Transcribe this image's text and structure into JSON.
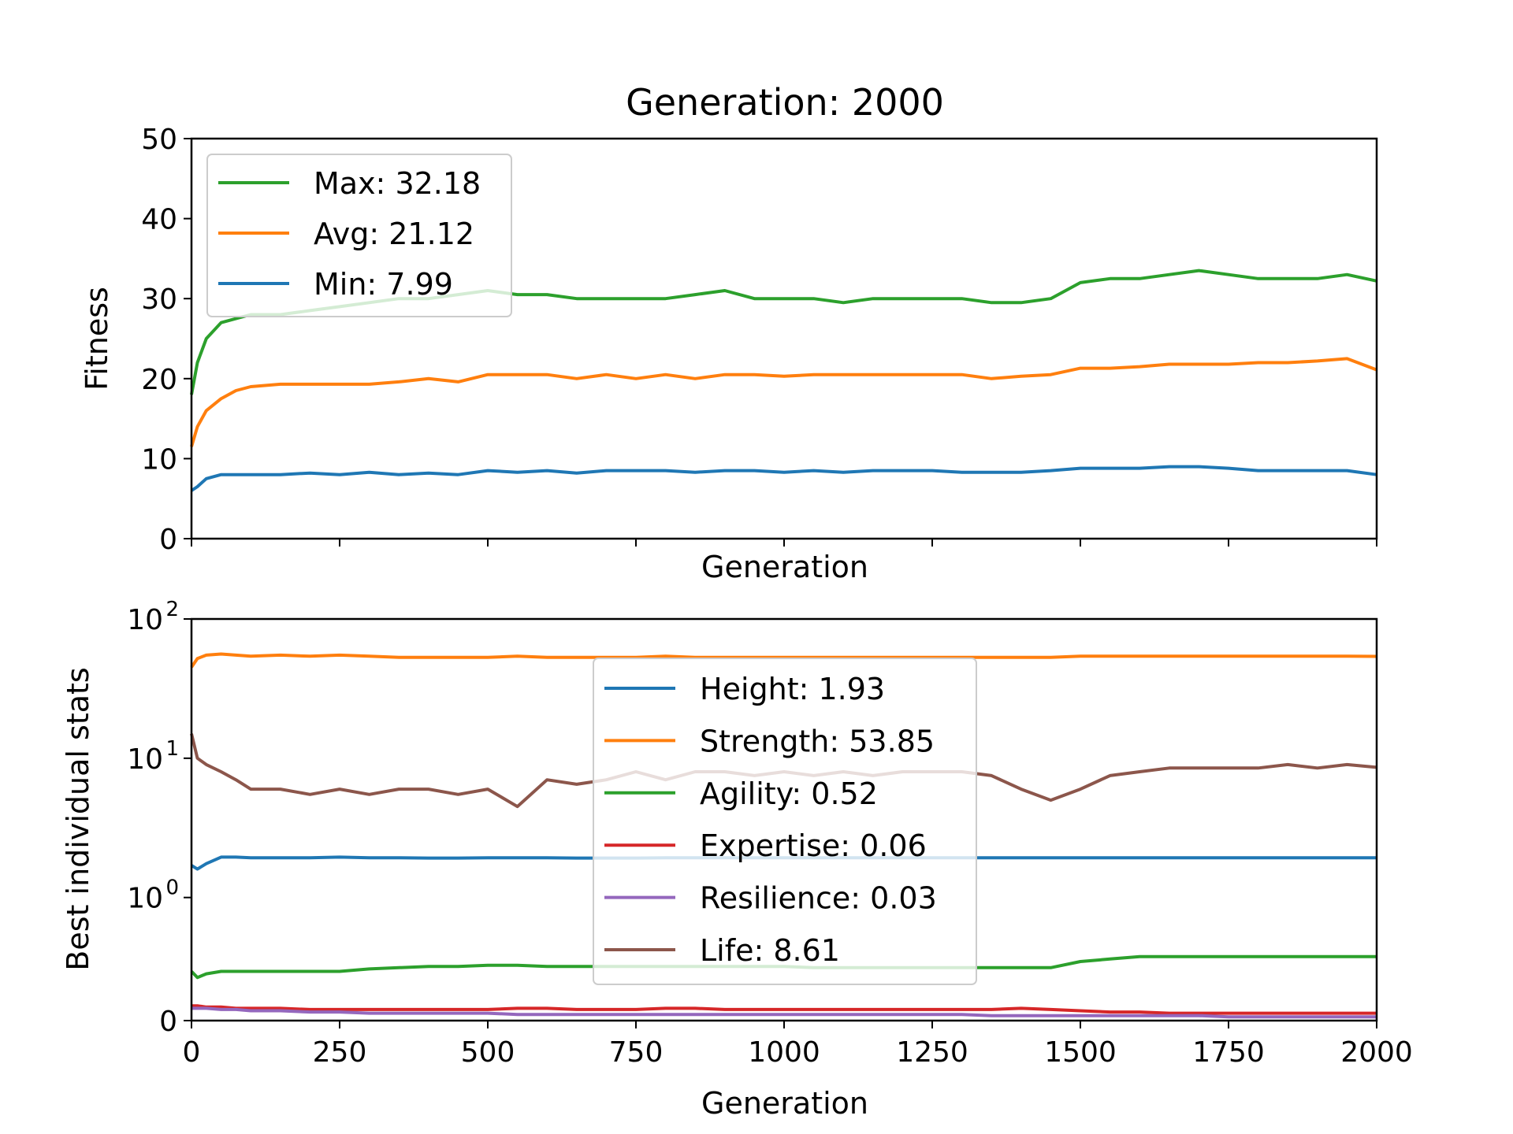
{
  "chart_data": [
    {
      "type": "line",
      "title": "Generation: 2000",
      "xlabel": "Generation",
      "ylabel": "Fitness",
      "xlim": [
        0,
        2000
      ],
      "ylim": [
        0,
        50
      ],
      "yscale": "linear",
      "grid": false,
      "legend_position": "top-left",
      "x_ticks": [
        0,
        250,
        500,
        750,
        1000,
        1250,
        1500,
        1750,
        2000
      ],
      "x_tick_labels_shown": false,
      "y_ticks": [
        "0",
        "10",
        "20",
        "30",
        "40",
        "50"
      ],
      "x": [
        0,
        10,
        25,
        50,
        75,
        100,
        150,
        200,
        250,
        300,
        350,
        400,
        450,
        500,
        550,
        600,
        650,
        700,
        750,
        800,
        850,
        900,
        950,
        1000,
        1050,
        1100,
        1150,
        1200,
        1250,
        1300,
        1350,
        1400,
        1450,
        1500,
        1550,
        1600,
        1650,
        1700,
        1750,
        1800,
        1850,
        1900,
        1950,
        2000
      ],
      "series": [
        {
          "name": "Max: 32.18",
          "color": "#2ca02c",
          "values": [
            18,
            22,
            25,
            27,
            27.5,
            28,
            28,
            28.5,
            29,
            29.5,
            30,
            30,
            30.5,
            31,
            30.5,
            30.5,
            30,
            30,
            30,
            30,
            30.5,
            31,
            30,
            30,
            30,
            29.5,
            30,
            30,
            30,
            30,
            29.5,
            29.5,
            30,
            32,
            32.5,
            32.5,
            33,
            33.5,
            33,
            32.5,
            32.5,
            32.5,
            33,
            32.2
          ]
        },
        {
          "name": "Avg: 21.12",
          "color": "#ff7f0e",
          "values": [
            11.5,
            14,
            16,
            17.5,
            18.5,
            19,
            19.3,
            19.3,
            19.3,
            19.3,
            19.6,
            20,
            19.6,
            20.5,
            20.5,
            20.5,
            20,
            20.5,
            20,
            20.5,
            20,
            20.5,
            20.5,
            20.3,
            20.5,
            20.5,
            20.5,
            20.5,
            20.5,
            20.5,
            20,
            20.3,
            20.5,
            21.3,
            21.3,
            21.5,
            21.8,
            21.8,
            21.8,
            22,
            22,
            22.2,
            22.5,
            21.1
          ]
        },
        {
          "name": "Min: 7.99",
          "color": "#1f77b4",
          "values": [
            6,
            6.5,
            7.5,
            8,
            8,
            8,
            8,
            8.2,
            8,
            8.3,
            8,
            8.2,
            8,
            8.5,
            8.3,
            8.5,
            8.2,
            8.5,
            8.5,
            8.5,
            8.3,
            8.5,
            8.5,
            8.3,
            8.5,
            8.3,
            8.5,
            8.5,
            8.5,
            8.3,
            8.3,
            8.3,
            8.5,
            8.8,
            8.8,
            8.8,
            9,
            9,
            8.8,
            8.5,
            8.5,
            8.5,
            8.5,
            8
          ]
        }
      ]
    },
    {
      "type": "line",
      "title": "",
      "xlabel": "Generation",
      "ylabel": "Best individual stats",
      "xlim": [
        0,
        2000
      ],
      "ylim": [
        0,
        100
      ],
      "yscale": "symlog",
      "grid": false,
      "legend_position": "center",
      "x_ticks": [
        "0",
        "250",
        "500",
        "750",
        "1000",
        "1250",
        "1500",
        "1750",
        "2000"
      ],
      "y_ticks": [
        {
          "value": 0,
          "label": "0"
        },
        {
          "base": "10",
          "exp": "0"
        },
        {
          "base": "10",
          "exp": "1"
        },
        {
          "base": "10",
          "exp": "2"
        }
      ],
      "x": [
        0,
        10,
        25,
        50,
        75,
        100,
        150,
        200,
        250,
        300,
        350,
        400,
        450,
        500,
        550,
        600,
        650,
        700,
        750,
        800,
        850,
        900,
        950,
        1000,
        1050,
        1100,
        1150,
        1200,
        1250,
        1300,
        1350,
        1400,
        1450,
        1500,
        1550,
        1600,
        1650,
        1700,
        1750,
        1800,
        1850,
        1900,
        1950,
        2000
      ],
      "series": [
        {
          "name": "Height: 1.93",
          "color": "#1f77b4",
          "values": [
            1.7,
            1.6,
            1.75,
            1.95,
            1.95,
            1.93,
            1.93,
            1.93,
            1.95,
            1.93,
            1.93,
            1.92,
            1.92,
            1.93,
            1.93,
            1.93,
            1.92,
            1.92,
            1.92,
            1.93,
            1.93,
            1.93,
            1.93,
            1.93,
            1.93,
            1.93,
            1.93,
            1.93,
            1.93,
            1.93,
            1.93,
            1.93,
            1.93,
            1.93,
            1.93,
            1.93,
            1.93,
            1.93,
            1.93,
            1.93,
            1.93,
            1.93,
            1.93,
            1.93
          ]
        },
        {
          "name": "Strength: 53.85",
          "color": "#ff7f0e",
          "values": [
            45,
            52,
            55,
            56,
            55,
            54,
            55,
            54,
            55,
            54,
            53,
            53,
            53,
            53,
            54,
            53,
            53,
            53,
            53,
            54,
            53,
            53,
            53,
            53,
            53,
            53,
            53,
            53,
            53,
            53,
            53,
            53,
            53,
            54,
            54,
            54,
            54,
            54,
            54,
            54,
            54,
            54,
            54,
            53.85
          ]
        },
        {
          "name": "Agility: 0.52",
          "color": "#2ca02c",
          "values": [
            0.4,
            0.35,
            0.38,
            0.4,
            0.4,
            0.4,
            0.4,
            0.4,
            0.4,
            0.42,
            0.43,
            0.44,
            0.44,
            0.45,
            0.45,
            0.44,
            0.44,
            0.44,
            0.44,
            0.44,
            0.44,
            0.44,
            0.44,
            0.44,
            0.43,
            0.43,
            0.43,
            0.43,
            0.43,
            0.43,
            0.43,
            0.43,
            0.43,
            0.48,
            0.5,
            0.52,
            0.52,
            0.52,
            0.52,
            0.52,
            0.52,
            0.52,
            0.52,
            0.52
          ]
        },
        {
          "name": "Expertise: 0.06",
          "color": "#d62728",
          "values": [
            0.12,
            0.12,
            0.11,
            0.11,
            0.1,
            0.1,
            0.1,
            0.09,
            0.09,
            0.09,
            0.09,
            0.09,
            0.09,
            0.09,
            0.1,
            0.1,
            0.09,
            0.09,
            0.09,
            0.1,
            0.1,
            0.09,
            0.09,
            0.09,
            0.09,
            0.09,
            0.09,
            0.09,
            0.09,
            0.09,
            0.09,
            0.1,
            0.09,
            0.08,
            0.07,
            0.07,
            0.06,
            0.06,
            0.06,
            0.06,
            0.06,
            0.06,
            0.06,
            0.06
          ]
        },
        {
          "name": "Resilience: 0.03",
          "color": "#9467bd",
          "values": [
            0.1,
            0.1,
            0.1,
            0.09,
            0.09,
            0.08,
            0.08,
            0.07,
            0.07,
            0.06,
            0.06,
            0.06,
            0.06,
            0.06,
            0.05,
            0.05,
            0.05,
            0.05,
            0.05,
            0.05,
            0.05,
            0.05,
            0.05,
            0.05,
            0.05,
            0.05,
            0.05,
            0.05,
            0.05,
            0.05,
            0.04,
            0.04,
            0.04,
            0.04,
            0.04,
            0.04,
            0.04,
            0.04,
            0.03,
            0.03,
            0.03,
            0.03,
            0.03,
            0.03
          ]
        },
        {
          "name": "Life: 8.61",
          "color": "#8c564b",
          "values": [
            15,
            10,
            9,
            8,
            7,
            6,
            6,
            5.5,
            6,
            5.5,
            6,
            6,
            5.5,
            6,
            4.5,
            7,
            6.5,
            7,
            8,
            7,
            8,
            8,
            7.5,
            8,
            7.5,
            8,
            7.5,
            8,
            8,
            8,
            7.5,
            6,
            5,
            6,
            7.5,
            8,
            8.5,
            8.5,
            8.5,
            8.5,
            9,
            8.5,
            9,
            8.6
          ]
        }
      ]
    }
  ]
}
